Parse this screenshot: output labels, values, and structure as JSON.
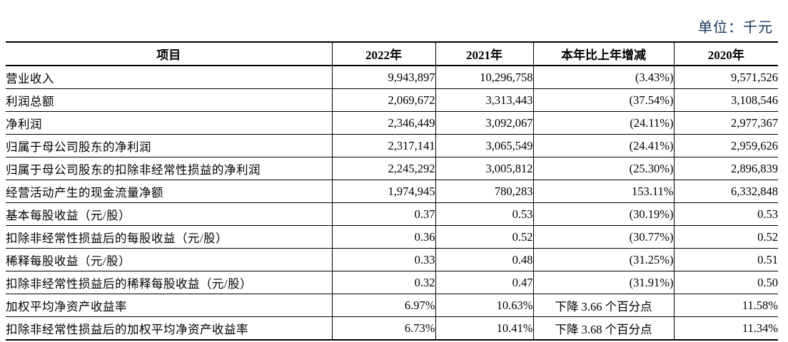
{
  "unit_label": "单位：千元",
  "colors": {
    "unit_text": "#17365D",
    "table_text": "#000000",
    "border": "#000000",
    "background": "#ffffff"
  },
  "table": {
    "headers": [
      "项目",
      "2022年",
      "2021年",
      "本年比上年增减",
      "2020年"
    ],
    "rows": [
      {
        "item": "营业收入",
        "y2022": "9,943,897",
        "y2021": "10,296,758",
        "change": "(3.43%)",
        "y2020": "9,571,526"
      },
      {
        "item": "利润总额",
        "y2022": "2,069,672",
        "y2021": "3,313,443",
        "change": "(37.54%)",
        "y2020": "3,108,546"
      },
      {
        "item": "净利润",
        "y2022": "2,346,449",
        "y2021": "3,092,067",
        "change": "(24.11%)",
        "y2020": "2,977,367"
      },
      {
        "item": "归属于母公司股东的净利润",
        "y2022": "2,317,141",
        "y2021": "3,065,549",
        "change": "(24.41%)",
        "y2020": "2,959,626"
      },
      {
        "item": "归属于母公司股东的扣除非经常性损益的净利润",
        "y2022": "2,245,292",
        "y2021": "3,005,812",
        "change": "(25.30%)",
        "y2020": "2,896,839"
      },
      {
        "item": "经营活动产生的现金流量净额",
        "y2022": "1,974,945",
        "y2021": "780,283",
        "change": "153.11%",
        "y2020": "6,332,848"
      },
      {
        "item": "基本每股收益（元/股）",
        "y2022": "0.37",
        "y2021": "0.53",
        "change": "(30.19%)",
        "y2020": "0.53"
      },
      {
        "item": "扣除非经常性损益后的每股收益（元/股）",
        "y2022": "0.36",
        "y2021": "0.52",
        "change": "(30.77%)",
        "y2020": "0.52"
      },
      {
        "item": "稀释每股收益（元/股）",
        "y2022": "0.33",
        "y2021": "0.48",
        "change": "(31.25%)",
        "y2020": "0.51"
      },
      {
        "item": "扣除非经常性损益后的稀释每股收益（元/股）",
        "y2022": "0.32",
        "y2021": "0.47",
        "change": "(31.91%)",
        "y2020": "0.50"
      },
      {
        "item": "加权平均净资产收益率",
        "y2022": "6.97%",
        "y2021": "10.63%",
        "change": "下降 3.66 个百分点",
        "y2020": "11.58%"
      },
      {
        "item": "扣除非经常性损益后的加权平均净资产收益率",
        "y2022": "6.73%",
        "y2021": "10.41%",
        "change": "下降 3.68 个百分点",
        "y2020": "11.34%"
      }
    ]
  }
}
